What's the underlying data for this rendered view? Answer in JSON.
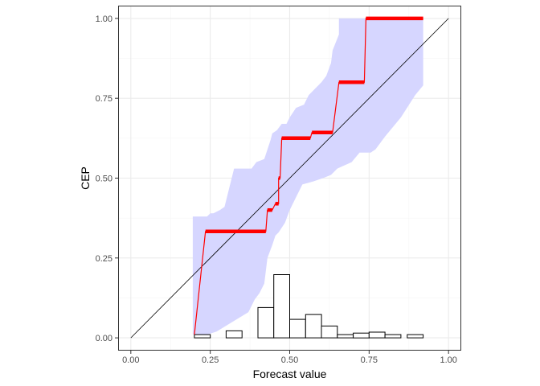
{
  "chart_data": {
    "type": "line",
    "xlabel": "Forecast value",
    "ylabel": "CEP",
    "xlim": [
      -0.04,
      1.04
    ],
    "ylim": [
      -0.04,
      1.04
    ],
    "x_ticks": [
      "0.00",
      "0.25",
      "0.50",
      "0.75",
      "1.00"
    ],
    "y_ticks": [
      "0.00",
      "0.25",
      "0.50",
      "0.75",
      "1.00"
    ],
    "grid": true,
    "legend": "none",
    "colors": {
      "cep_line": "#ff0000",
      "band_fill": "#d6d6ff",
      "diagonal": "#000000",
      "histogram_outline": "#000000",
      "histogram_fill": "#ffffff",
      "panel_border": "#333333",
      "grid_major": "#ebebeb",
      "grid_minor": "#f5f5f5"
    },
    "diagonal": [
      [
        0,
        0
      ],
      [
        1,
        1
      ]
    ],
    "cep_steps": [
      {
        "x0": 0.2,
        "x1": 0.2,
        "y": 0.01
      },
      {
        "x0": 0.235,
        "x1": 0.425,
        "y": 0.333
      },
      {
        "x0": 0.43,
        "x1": 0.445,
        "y": 0.4
      },
      {
        "x0": 0.455,
        "x1": 0.465,
        "y": 0.42
      },
      {
        "x0": 0.465,
        "x1": 0.47,
        "y": 0.5
      },
      {
        "x0": 0.475,
        "x1": 0.565,
        "y": 0.625
      },
      {
        "x0": 0.57,
        "x1": 0.635,
        "y": 0.643
      },
      {
        "x0": 0.655,
        "x1": 0.735,
        "y": 0.8
      },
      {
        "x0": 0.74,
        "x1": 0.92,
        "y": 1.0
      }
    ],
    "cep_line": [
      [
        0.2,
        0.01
      ],
      [
        0.235,
        0.333
      ],
      [
        0.425,
        0.333
      ],
      [
        0.43,
        0.4
      ],
      [
        0.445,
        0.4
      ],
      [
        0.455,
        0.42
      ],
      [
        0.465,
        0.42
      ],
      [
        0.465,
        0.5
      ],
      [
        0.47,
        0.5
      ],
      [
        0.475,
        0.625
      ],
      [
        0.565,
        0.625
      ],
      [
        0.57,
        0.643
      ],
      [
        0.635,
        0.643
      ],
      [
        0.655,
        0.8
      ],
      [
        0.735,
        0.8
      ],
      [
        0.74,
        1.0
      ],
      [
        0.92,
        1.0
      ]
    ],
    "band_upper": [
      [
        0.195,
        0.38
      ],
      [
        0.24,
        0.38
      ],
      [
        0.25,
        0.39
      ],
      [
        0.26,
        0.39
      ],
      [
        0.28,
        0.4
      ],
      [
        0.295,
        0.41
      ],
      [
        0.325,
        0.53
      ],
      [
        0.36,
        0.53
      ],
      [
        0.38,
        0.53
      ],
      [
        0.395,
        0.55
      ],
      [
        0.42,
        0.56
      ],
      [
        0.44,
        0.62
      ],
      [
        0.445,
        0.64
      ],
      [
        0.46,
        0.65
      ],
      [
        0.475,
        0.67
      ],
      [
        0.49,
        0.67
      ],
      [
        0.5,
        0.69
      ],
      [
        0.52,
        0.72
      ],
      [
        0.545,
        0.73
      ],
      [
        0.56,
        0.76
      ],
      [
        0.58,
        0.78
      ],
      [
        0.6,
        0.8
      ],
      [
        0.615,
        0.82
      ],
      [
        0.63,
        0.86
      ],
      [
        0.635,
        0.9
      ],
      [
        0.655,
        0.95
      ],
      [
        0.655,
        1.0
      ],
      [
        0.92,
        1.0
      ]
    ],
    "band_lower": [
      [
        0.92,
        0.79
      ],
      [
        0.895,
        0.76
      ],
      [
        0.85,
        0.69
      ],
      [
        0.8,
        0.63
      ],
      [
        0.77,
        0.59
      ],
      [
        0.755,
        0.58
      ],
      [
        0.72,
        0.58
      ],
      [
        0.695,
        0.55
      ],
      [
        0.65,
        0.53
      ],
      [
        0.63,
        0.51
      ],
      [
        0.605,
        0.5
      ],
      [
        0.575,
        0.49
      ],
      [
        0.54,
        0.48
      ],
      [
        0.52,
        0.44
      ],
      [
        0.5,
        0.4
      ],
      [
        0.485,
        0.36
      ],
      [
        0.465,
        0.33
      ],
      [
        0.455,
        0.32
      ],
      [
        0.445,
        0.29
      ],
      [
        0.43,
        0.25
      ],
      [
        0.42,
        0.17
      ],
      [
        0.405,
        0.14
      ],
      [
        0.39,
        0.12
      ],
      [
        0.37,
        0.08
      ],
      [
        0.32,
        0.05
      ],
      [
        0.27,
        0.02
      ],
      [
        0.24,
        0.01
      ],
      [
        0.21,
        0.01
      ],
      [
        0.195,
        0.01
      ]
    ],
    "histogram": {
      "bin_width": 0.05,
      "bins": [
        {
          "x0": 0.2,
          "y": 0.01
        },
        {
          "x0": 0.3,
          "y": 0.022
        },
        {
          "x0": 0.4,
          "y": 0.095
        },
        {
          "x0": 0.45,
          "y": 0.198
        },
        {
          "x0": 0.5,
          "y": 0.058
        },
        {
          "x0": 0.55,
          "y": 0.073
        },
        {
          "x0": 0.6,
          "y": 0.037
        },
        {
          "x0": 0.65,
          "y": 0.01
        },
        {
          "x0": 0.7,
          "y": 0.015
        },
        {
          "x0": 0.75,
          "y": 0.018
        },
        {
          "x0": 0.8,
          "y": 0.01
        },
        {
          "x0": 0.85,
          "y": 0.0
        },
        {
          "x0": 0.87,
          "y": 0.01
        }
      ]
    }
  }
}
